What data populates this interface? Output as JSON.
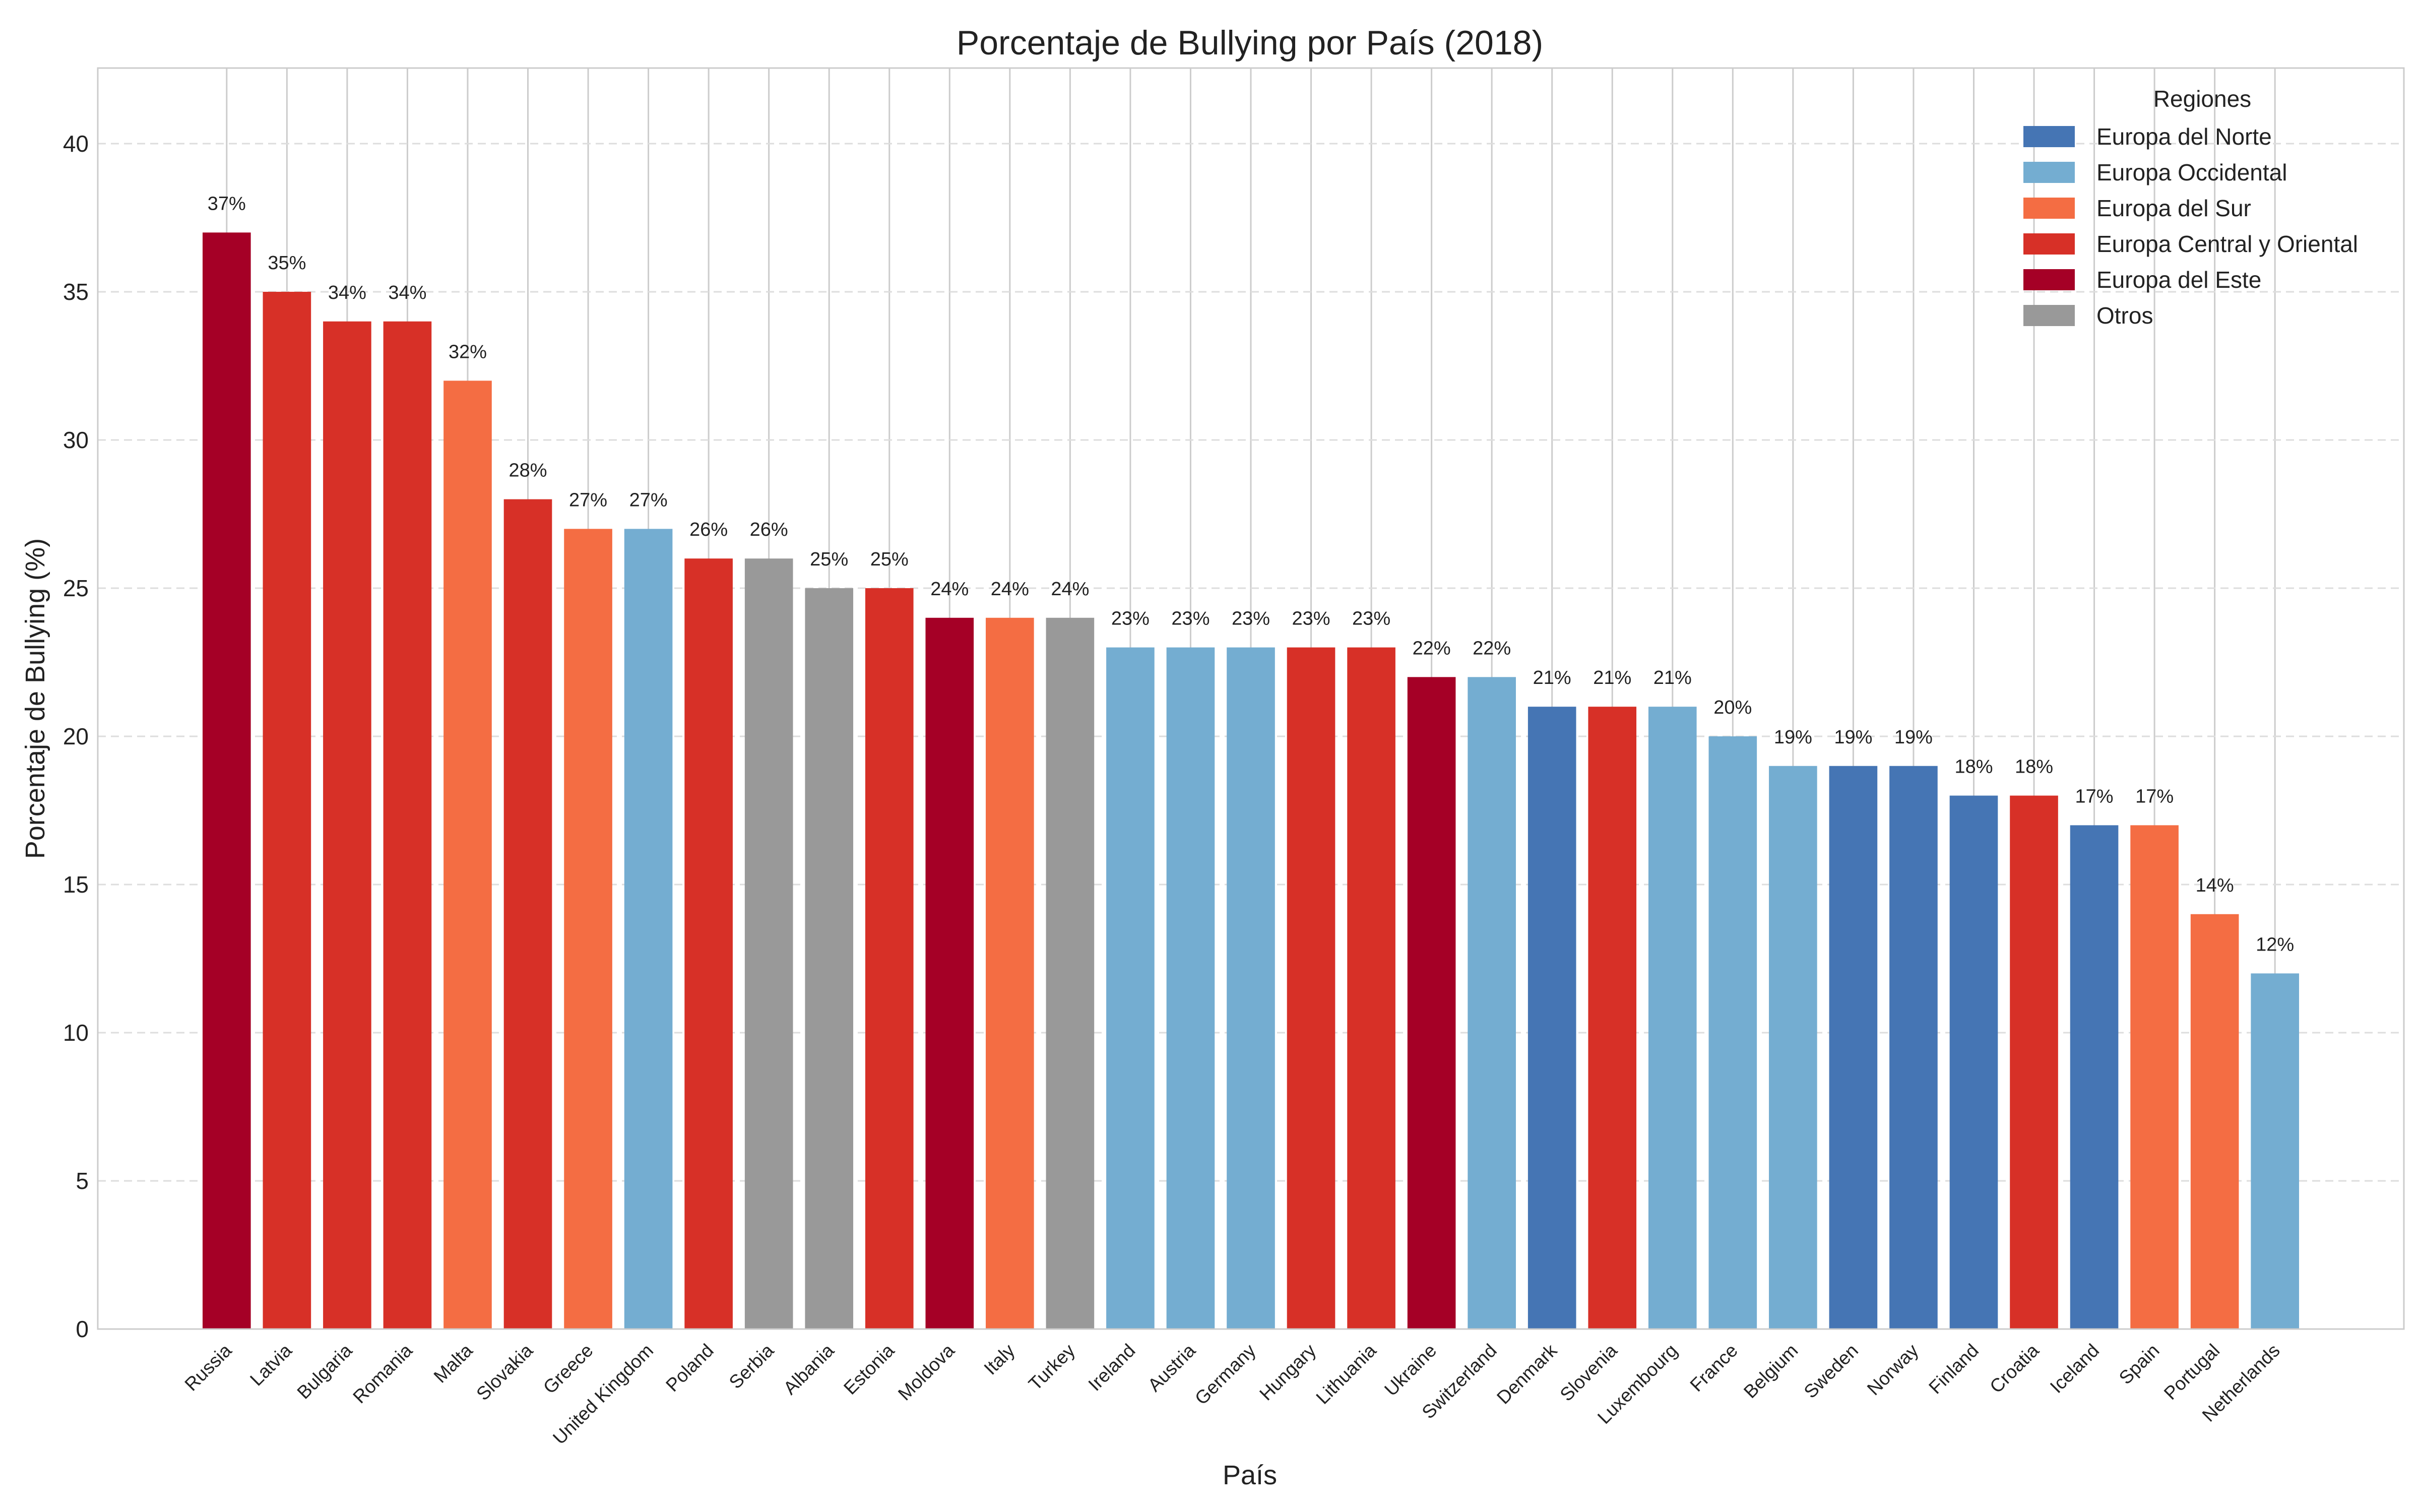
{
  "chart_data": {
    "type": "bar",
    "title": "Porcentaje de Bullying por País (2018)",
    "xlabel": "País",
    "ylabel": "Porcentaje de Bullying (%)",
    "ylim": [
      0,
      42.55
    ],
    "yticks": [
      0,
      5,
      10,
      15,
      20,
      25,
      30,
      35,
      40
    ],
    "grid": true,
    "legend": {
      "title": "Regiones",
      "placement": "top-right",
      "entries": [
        {
          "name": "Europa del Norte",
          "color": "#4575b4"
        },
        {
          "name": "Europa Occidental",
          "color": "#74add1"
        },
        {
          "name": "Europa del Sur",
          "color": "#f46d43"
        },
        {
          "name": "Europa Central y Oriental",
          "color": "#d73027"
        },
        {
          "name": "Europa del Este",
          "color": "#a50026"
        },
        {
          "name": "Otros",
          "color": "#999999"
        }
      ]
    },
    "categories": [
      "Russia",
      "Latvia",
      "Bulgaria",
      "Romania",
      "Malta",
      "Slovakia",
      "Greece",
      "United Kingdom",
      "Poland",
      "Serbia",
      "Albania",
      "Estonia",
      "Moldova",
      "Italy",
      "Turkey",
      "Ireland",
      "Austria",
      "Germany",
      "Hungary",
      "Lithuania",
      "Ukraine",
      "Switzerland",
      "Denmark",
      "Slovenia",
      "Luxembourg",
      "France",
      "Belgium",
      "Sweden",
      "Norway",
      "Finland",
      "Croatia",
      "Iceland",
      "Spain",
      "Portugal",
      "Netherlands"
    ],
    "values": [
      37,
      35,
      34,
      34,
      32,
      28,
      27,
      27,
      26,
      26,
      25,
      25,
      24,
      24,
      24,
      23,
      23,
      23,
      23,
      23,
      22,
      22,
      21,
      21,
      21,
      20,
      19,
      19,
      19,
      18,
      18,
      17,
      17,
      14,
      12
    ],
    "regions": [
      4,
      3,
      3,
      3,
      2,
      3,
      2,
      1,
      3,
      5,
      5,
      3,
      4,
      2,
      5,
      1,
      1,
      1,
      3,
      3,
      4,
      1,
      0,
      3,
      1,
      1,
      1,
      0,
      0,
      0,
      3,
      0,
      2,
      2,
      1
    ],
    "data_labels": [
      "37%",
      "35%",
      "34%",
      "34%",
      "32%",
      "28%",
      "27%",
      "27%",
      "26%",
      "26%",
      "25%",
      "25%",
      "24%",
      "24%",
      "24%",
      "23%",
      "23%",
      "23%",
      "23%",
      "23%",
      "22%",
      "22%",
      "21%",
      "21%",
      "21%",
      "20%",
      "19%",
      "19%",
      "19%",
      "18%",
      "18%",
      "17%",
      "17%",
      "14%",
      "12%"
    ]
  }
}
